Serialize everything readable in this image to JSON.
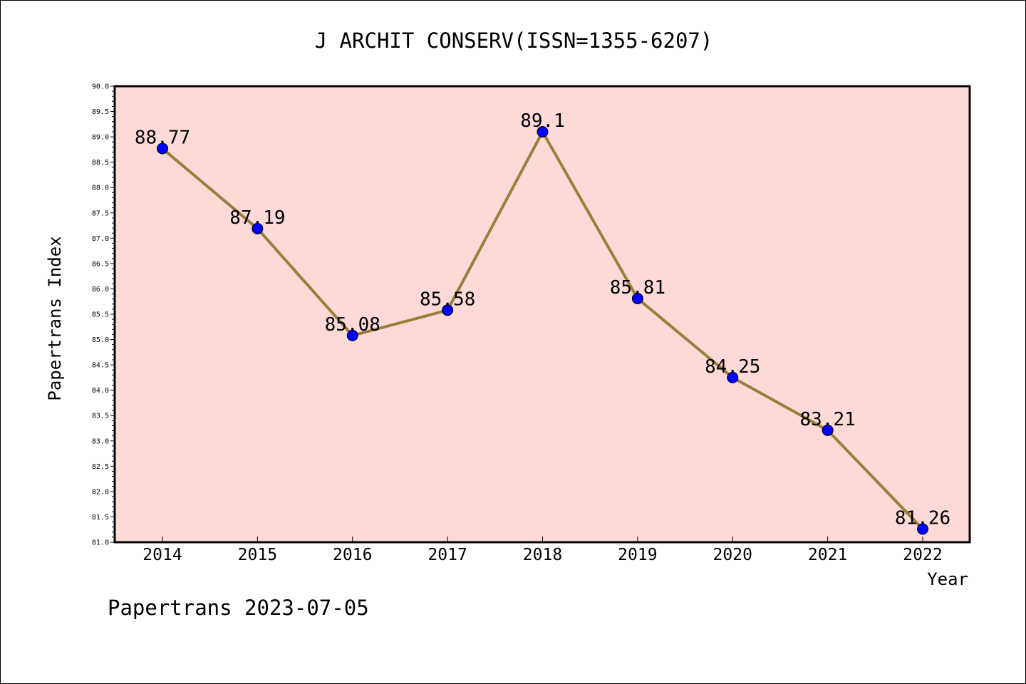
{
  "chart_data": {
    "type": "line",
    "title": "J ARCHIT CONSERV(ISSN=1355-6207)",
    "xlabel": "Year",
    "ylabel": "Papertrans Index",
    "x": [
      "2014",
      "2015",
      "2016",
      "2017",
      "2018",
      "2019",
      "2020",
      "2021",
      "2022"
    ],
    "series": [
      {
        "values": [
          88.77,
          87.19,
          85.08,
          85.58,
          89.1,
          85.81,
          84.25,
          83.21,
          81.26
        ],
        "data_labels": [
          "88.77",
          "87.19",
          "85.08",
          "85.58",
          "89.1",
          "85.81",
          "84.25",
          "83.21",
          "81.26"
        ]
      }
    ],
    "ylim": [
      81.0,
      90.0
    ],
    "yticks": [
      "81.0",
      "81.5",
      "82.0",
      "82.5",
      "83.0",
      "83.5",
      "84.0",
      "84.5",
      "85.0",
      "85.5",
      "86.0",
      "86.5",
      "87.0",
      "87.5",
      "88.0",
      "88.5",
      "89.0",
      "89.5",
      "90.0"
    ],
    "grid": false,
    "legend": "none",
    "colors": {
      "plot_background": "#fddad8",
      "line": "#9a7f3a",
      "marker": "#0000ff",
      "axis": "#000000"
    }
  },
  "footer": {
    "text": "Papertrans 2023-07-05"
  }
}
